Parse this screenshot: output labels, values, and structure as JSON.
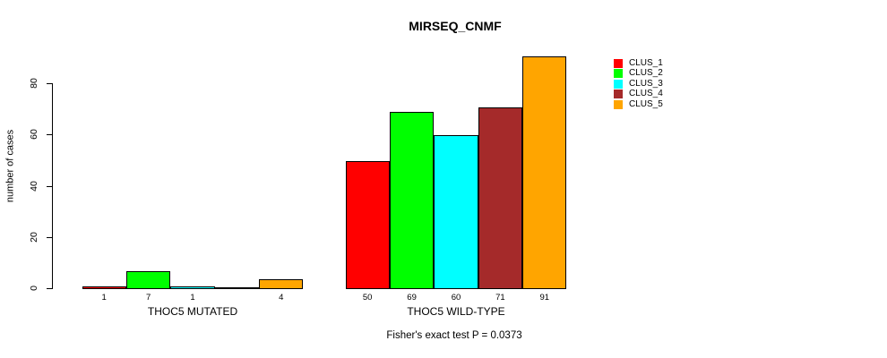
{
  "chart_data": {
    "type": "bar",
    "title": "MIRSEQ_CNMF",
    "ylabel": "number of cases",
    "subtitle": "Fisher's exact test P = 0.0373",
    "yticks": [
      0,
      20,
      40,
      60,
      80
    ],
    "ylim": [
      0,
      91
    ],
    "grid": false,
    "legend_position": "right-inside",
    "categories": [
      "CLUS_1",
      "CLUS_2",
      "CLUS_3",
      "CLUS_4",
      "CLUS_5"
    ],
    "groups": [
      {
        "label": "THOC5 MUTATED",
        "values": [
          1,
          7,
          1,
          0,
          4
        ],
        "bar_labels": [
          "1",
          "7",
          "1",
          "",
          "4"
        ]
      },
      {
        "label": "THOC5 WILD-TYPE",
        "values": [
          50,
          69,
          60,
          71,
          91
        ],
        "bar_labels": [
          "50",
          "69",
          "60",
          "71",
          "91"
        ]
      }
    ],
    "legend": [
      {
        "label": "CLUS_1",
        "color": "#FF0000"
      },
      {
        "label": "CLUS_2",
        "color": "#00FF00"
      },
      {
        "label": "CLUS_3",
        "color": "#00FFFF"
      },
      {
        "label": "CLUS_4",
        "color": "#A52A2A"
      },
      {
        "label": "CLUS_5",
        "color": "#FFA500"
      }
    ],
    "colors": {
      "bar_border": "#000000",
      "axis": "#000000",
      "background": "#FFFFFF"
    }
  }
}
